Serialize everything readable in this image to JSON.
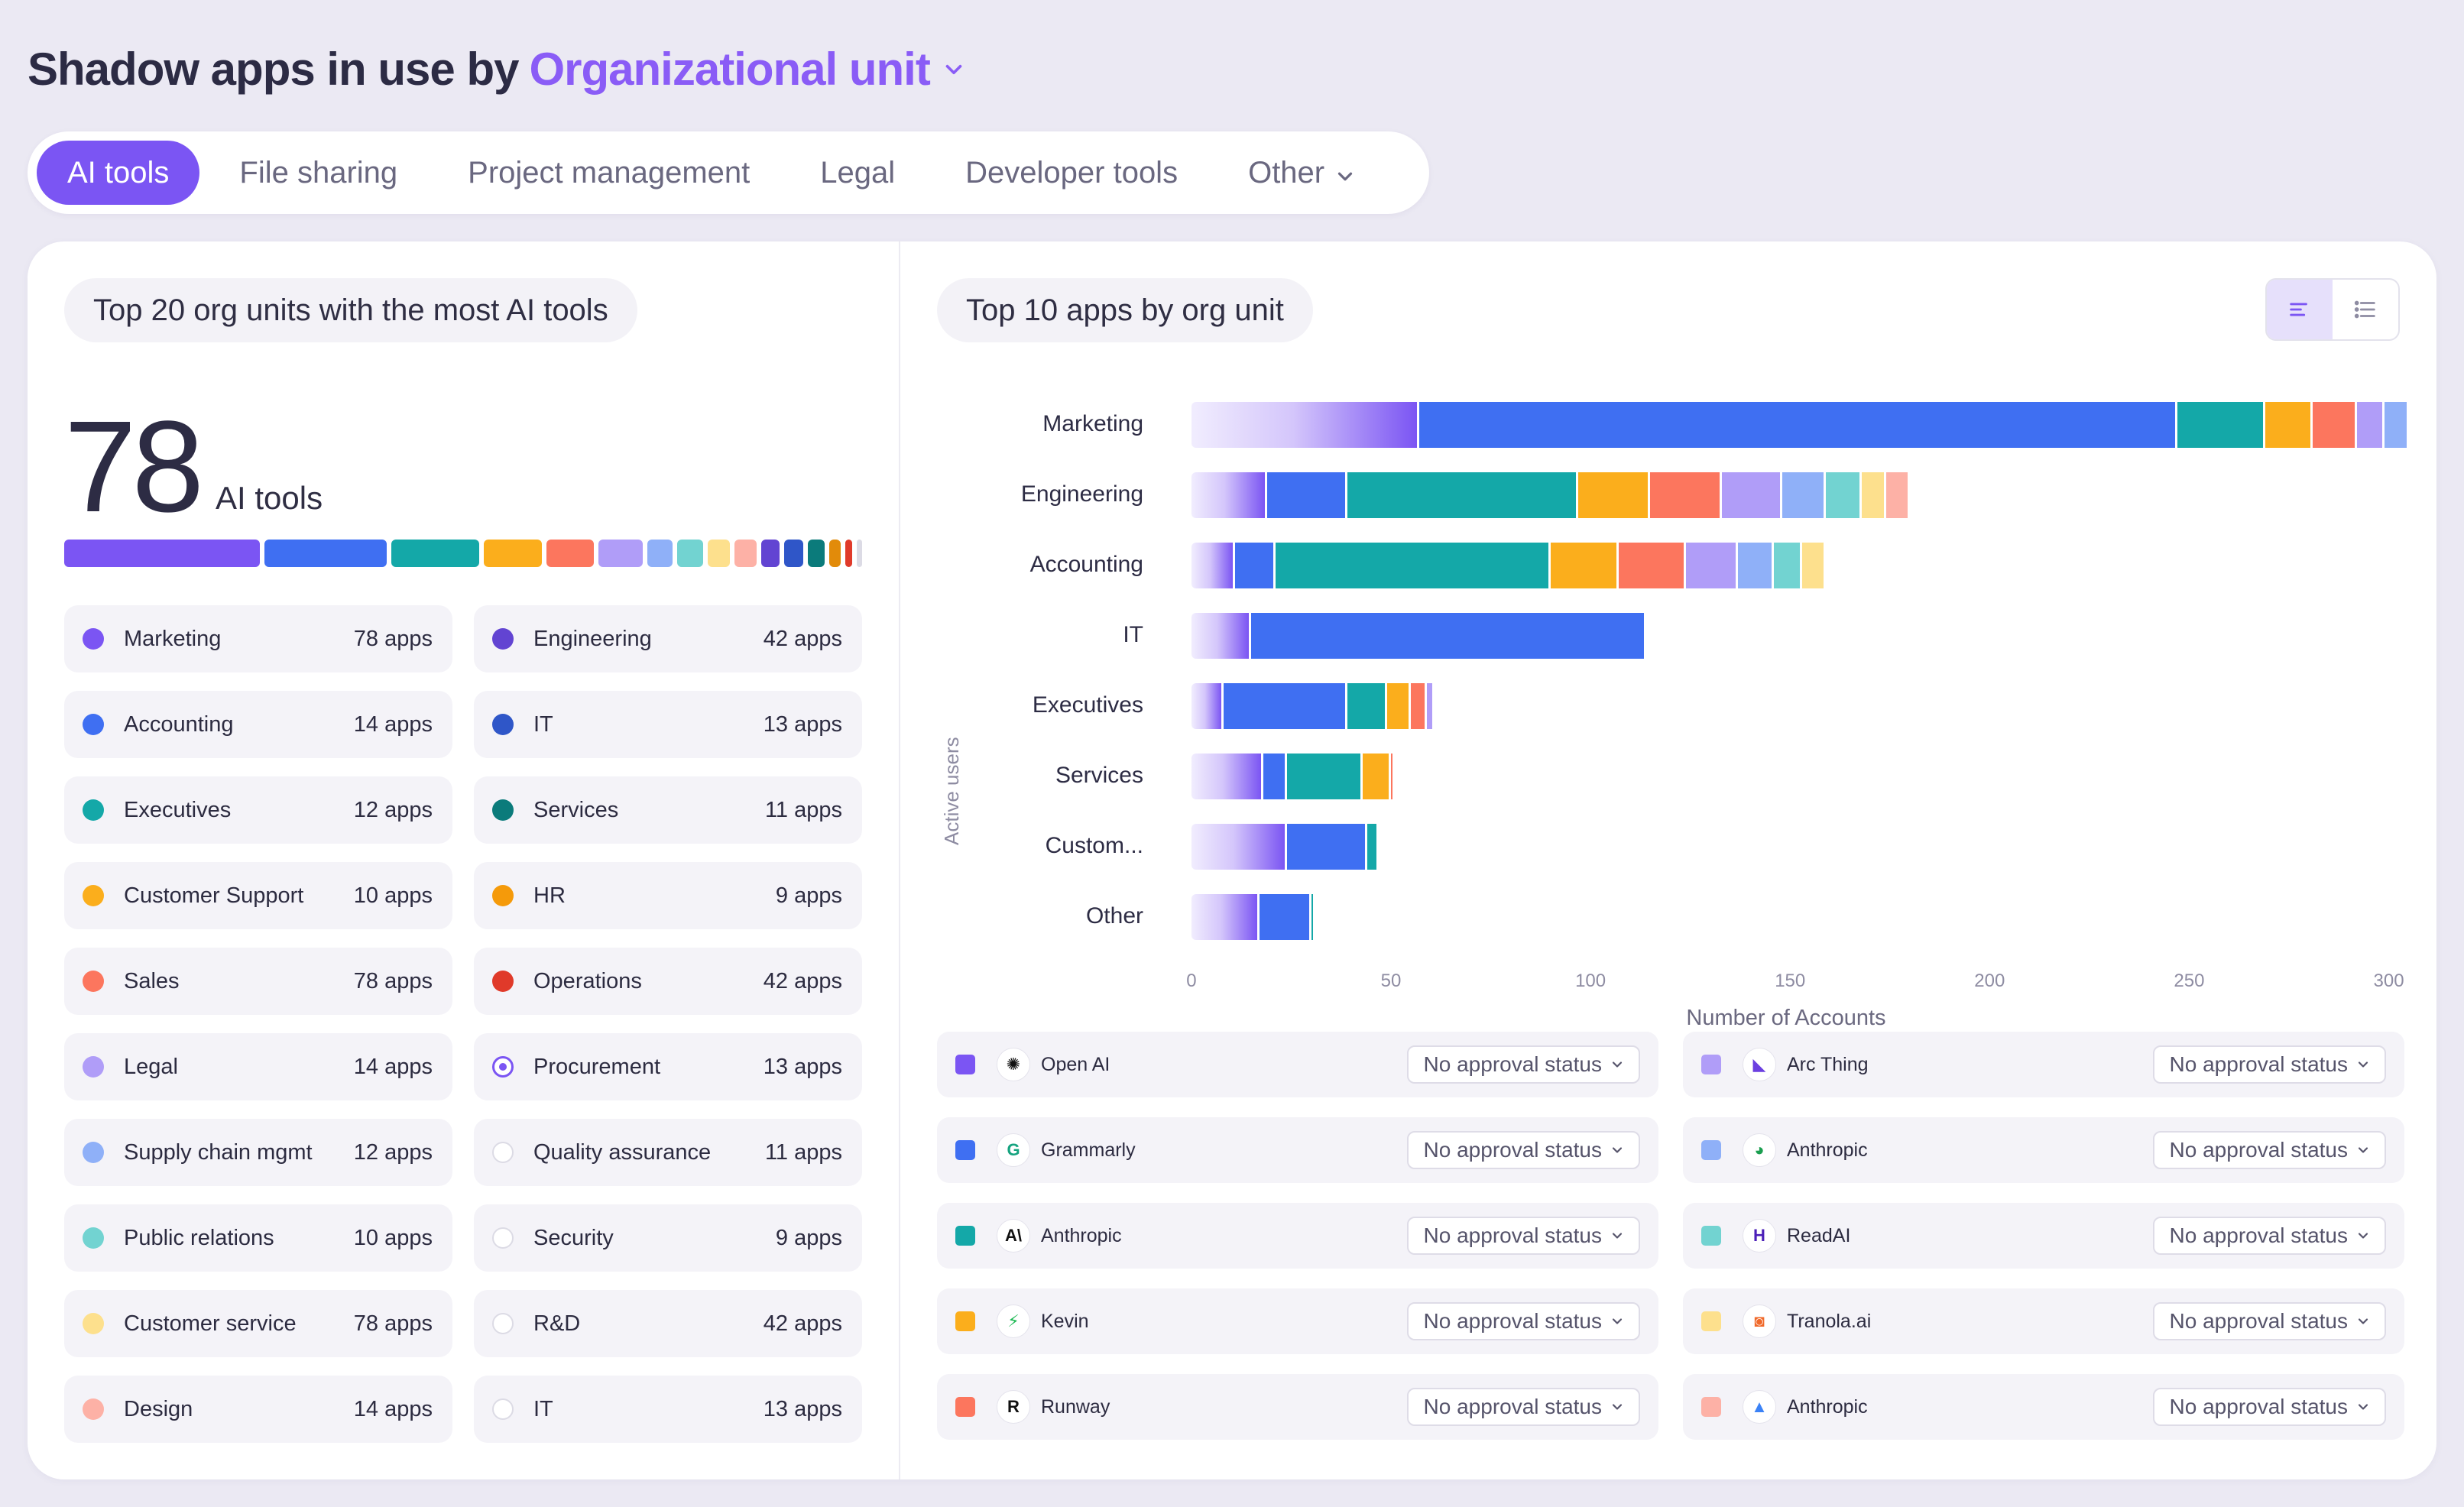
{
  "header": {
    "title_prefix": "Shadow apps in use by",
    "title_selector": "Organizational unit"
  },
  "tabs": [
    {
      "label": "AI tools",
      "active": true
    },
    {
      "label": "File sharing",
      "active": false
    },
    {
      "label": "Project management",
      "active": false
    },
    {
      "label": "Legal",
      "active": false
    },
    {
      "label": "Developer tools",
      "active": false
    },
    {
      "label": "Other",
      "active": false,
      "dropdown": true
    }
  ],
  "left_panel": {
    "title": "Top 20 org units with the most AI tools",
    "total_value": "78",
    "total_unit": "AI tools",
    "segment_bar": [
      {
        "color": "#7b55f3",
        "share": 11.5
      },
      {
        "color": "#3f6ff2",
        "share": 7.2
      },
      {
        "color": "#14a8a8",
        "share": 5.2
      },
      {
        "color": "#fbae1c",
        "share": 3.4
      },
      {
        "color": "#fc765e",
        "share": 2.8
      },
      {
        "color": "#b09df8",
        "share": 2.6
      },
      {
        "color": "#8fb0f8",
        "share": 1.5
      },
      {
        "color": "#72d3d1",
        "share": 1.5
      },
      {
        "color": "#fde08d",
        "share": 1.3
      },
      {
        "color": "#fdb1a6",
        "share": 1.3
      },
      {
        "color": "#6244d2",
        "share": 1.1
      },
      {
        "color": "#2f56c8",
        "share": 1.1
      },
      {
        "color": "#0b7b7b",
        "share": 1.0
      },
      {
        "color": "#e28b0a",
        "share": 0.7
      },
      {
        "color": "#e03a2a",
        "share": 0.4
      },
      {
        "color": "#dcdbe5",
        "share": 0.3
      }
    ],
    "org_units": [
      {
        "name": "Marketing",
        "count": "78 apps",
        "color": "#7b55f3",
        "style": "solid"
      },
      {
        "name": "Engineering",
        "count": "42 apps",
        "color": "#6244d2",
        "style": "solid"
      },
      {
        "name": "Accounting",
        "count": "14 apps",
        "color": "#3f6ff2",
        "style": "solid"
      },
      {
        "name": "IT",
        "count": "13 apps",
        "color": "#2f56c8",
        "style": "solid"
      },
      {
        "name": "Executives",
        "count": "12 apps",
        "color": "#14a8a8",
        "style": "solid"
      },
      {
        "name": "Services",
        "count": "11 apps",
        "color": "#0b7b7b",
        "style": "solid"
      },
      {
        "name": "Customer Support",
        "count": "10 apps",
        "color": "#fbae1c",
        "style": "solid"
      },
      {
        "name": "HR",
        "count": "9 apps",
        "color": "#f59a0a",
        "style": "solid"
      },
      {
        "name": "Sales",
        "count": "78 apps",
        "color": "#fc765e",
        "style": "solid"
      },
      {
        "name": "Operations",
        "count": "42 apps",
        "color": "#e03a2a",
        "style": "solid"
      },
      {
        "name": "Legal",
        "count": "14 apps",
        "color": "#b09df8",
        "style": "solid"
      },
      {
        "name": "Procurement",
        "count": "13 apps",
        "color": "#7b55f3",
        "style": "ring"
      },
      {
        "name": "Supply chain mgmt",
        "count": "12 apps",
        "color": "#8fb0f8",
        "style": "solid"
      },
      {
        "name": "Quality assurance",
        "count": "11 apps",
        "color": "#dcdbe5",
        "style": "empty"
      },
      {
        "name": "Public relations",
        "count": "10 apps",
        "color": "#72d3d1",
        "style": "solid"
      },
      {
        "name": "Security",
        "count": "9 apps",
        "color": "#dcdbe5",
        "style": "empty"
      },
      {
        "name": "Customer service",
        "count": "78 apps",
        "color": "#fde08d",
        "style": "solid"
      },
      {
        "name": "R&D",
        "count": "42 apps",
        "color": "#dcdbe5",
        "style": "empty"
      },
      {
        "name": "Design",
        "count": "14 apps",
        "color": "#fdb1a6",
        "style": "solid"
      },
      {
        "name": "IT",
        "count": "13 apps",
        "color": "#dcdbe5",
        "style": "empty"
      }
    ]
  },
  "right_panel": {
    "title": "Top 10 apps by org unit",
    "view_toggle": [
      {
        "icon": "bar-chart-icon",
        "active": true
      },
      {
        "icon": "list-icon",
        "active": false
      }
    ],
    "legend": [
      {
        "color": "#7b55f3",
        "logo": "openai-logo-icon",
        "logo_glyph": "✺",
        "logo_color": "#111111",
        "app": "Open AI",
        "status": "No approval status"
      },
      {
        "color": "#b09df8",
        "logo": "arc-thing-logo-icon",
        "logo_glyph": "◣",
        "logo_color": "#6b3fe0",
        "app": "Arc Thing",
        "status": "No approval status"
      },
      {
        "color": "#3f6ff2",
        "logo": "grammarly-logo-icon",
        "logo_glyph": "G",
        "logo_color": "#15a37f",
        "app": "Grammarly",
        "status": "No approval status"
      },
      {
        "color": "#8fb0f8",
        "logo": "anthropic-logo-icon",
        "logo_glyph": "◕",
        "logo_color": "#1a9e4f",
        "app": "Anthropic",
        "status": "No approval status"
      },
      {
        "color": "#14a8a8",
        "logo": "anthropic-a-logo-icon",
        "logo_glyph": "A\\",
        "logo_color": "#111111",
        "app": "Anthropic",
        "status": "No approval status"
      },
      {
        "color": "#72d3d1",
        "logo": "readai-logo-icon",
        "logo_glyph": "H",
        "logo_color": "#4b1fb8",
        "app": "ReadAI",
        "status": "No approval status"
      },
      {
        "color": "#fbae1c",
        "logo": "kevin-logo-icon",
        "logo_glyph": "⚡",
        "logo_color": "#1db954",
        "app": "Kevin",
        "status": "No approval status"
      },
      {
        "color": "#fde08d",
        "logo": "tranola-logo-icon",
        "logo_glyph": "◙",
        "logo_color": "#f0692a",
        "app": "Tranola.ai",
        "status": "No approval status"
      },
      {
        "color": "#fc765e",
        "logo": "runway-logo-icon",
        "logo_glyph": "R",
        "logo_color": "#111111",
        "app": "Runway",
        "status": "No approval status"
      },
      {
        "color": "#fdb1a6",
        "logo": "anthropic-tri-logo-icon",
        "logo_glyph": "▲",
        "logo_color": "#3b82f6",
        "app": "Anthropic",
        "status": "No approval status"
      }
    ]
  },
  "chart_data": {
    "type": "bar",
    "orientation": "horizontal",
    "stacked": true,
    "ylabel": "Active users",
    "xlabel": "Number of Accounts",
    "xlim": [
      -4,
      302
    ],
    "xticks": [
      0,
      50,
      100,
      150,
      200,
      250,
      300
    ],
    "categories": [
      "Marketing",
      "Engineering",
      "Accounting",
      "IT",
      "Executives",
      "Services",
      "Custom...",
      "Other"
    ],
    "series": [
      {
        "name": "Open AI",
        "color": "#7b55f3",
        "values": [
          57,
          19,
          11,
          15,
          8,
          18,
          24,
          17
        ]
      },
      {
        "name": "Grammarly",
        "color": "#3f6ff2",
        "values": [
          190,
          20,
          10,
          99,
          31,
          6,
          20,
          13
        ]
      },
      {
        "name": "Anthropic",
        "color": "#14a8a8",
        "values": [
          22,
          58,
          69,
          0,
          10,
          19,
          3,
          1
        ]
      },
      {
        "name": "Kevin",
        "color": "#fbae1c",
        "values": [
          12,
          18,
          17,
          0,
          6,
          7,
          0,
          0
        ]
      },
      {
        "name": "Runway",
        "color": "#fc765e",
        "values": [
          11,
          18,
          17,
          0,
          4,
          1,
          0,
          0
        ]
      },
      {
        "name": "Arc Thing",
        "color": "#b09df8",
        "values": [
          7,
          15,
          13,
          0,
          2,
          0,
          0,
          0
        ]
      },
      {
        "name": "Anthropic",
        "color": "#8fb0f8",
        "values": [
          6,
          11,
          9,
          0,
          0,
          0,
          0,
          0
        ]
      },
      {
        "name": "ReadAI",
        "color": "#72d3d1",
        "values": [
          0,
          9,
          7,
          0,
          0,
          0,
          0,
          0
        ]
      },
      {
        "name": "Tranola.ai",
        "color": "#fde08d",
        "values": [
          0,
          6,
          6,
          0,
          0,
          0,
          0,
          0
        ]
      },
      {
        "name": "Anthropic",
        "color": "#fdb1a6",
        "values": [
          0,
          6,
          0,
          0,
          0,
          0,
          0,
          0
        ]
      }
    ]
  }
}
